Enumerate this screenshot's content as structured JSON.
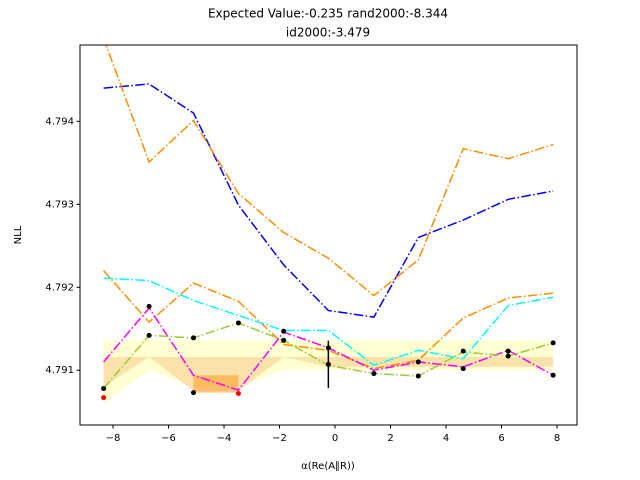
{
  "chart_data": {
    "type": "line",
    "title": [
      "Expected Value:-0.235       rand2000:-8.344",
      "id2000:-3.479"
    ],
    "x_label": "α(Re(A∥R))",
    "y_label": "NLL",
    "xlim": [
      -9.19,
      8.72
    ],
    "ylim": [
      4.79034,
      4.79492
    ],
    "xticks": [
      {
        "value": -8,
        "label": "−8"
      },
      {
        "value": -6,
        "label": "−6"
      },
      {
        "value": -4,
        "label": "−4"
      },
      {
        "value": -2,
        "label": "−2"
      },
      0,
      2,
      4,
      6,
      8
    ],
    "yticks": [
      4.791,
      4.792,
      4.793,
      4.794
    ],
    "x": [
      -8.34,
      -6.7,
      -5.1,
      -3.48,
      -1.85,
      -0.24,
      1.4,
      3.0,
      4.62,
      6.24,
      7.86
    ],
    "series": [
      {
        "color": "#0000ff",
        "values": [
          4.7944,
          4.79445,
          4.7941,
          4.79299,
          4.79227,
          4.79172,
          4.79164,
          4.7926,
          4.79281,
          4.79306,
          4.79316
        ]
      },
      {
        "color": "#ff8c00",
        "values": [
          4.795,
          4.79351,
          4.79401,
          4.79313,
          4.79266,
          4.79235,
          4.7919,
          4.79233,
          4.79367,
          4.79355,
          4.79372
        ]
      },
      {
        "color": "#ff8c00",
        "values": [
          4.7922,
          4.79158,
          4.79205,
          4.79183,
          4.79131,
          4.79124,
          4.79102,
          4.79112,
          4.79163,
          4.79187,
          4.79193
        ]
      },
      {
        "color": "#00ffff",
        "values": [
          4.79211,
          4.79208,
          4.79184,
          4.79166,
          4.79148,
          4.79148,
          4.79106,
          4.79124,
          4.79114,
          4.79178,
          4.79188
        ]
      },
      {
        "color": "#ff00ff",
        "values": [
          4.7911,
          4.79175,
          4.79094,
          4.79076,
          4.79146,
          4.79127,
          4.791,
          4.7911,
          4.79104,
          4.79124,
          4.79094
        ]
      },
      {
        "color": "#9acd32",
        "values": [
          4.79078,
          4.79142,
          4.79139,
          4.79157,
          4.79136,
          4.79106,
          4.79096,
          4.79093,
          4.79122,
          4.79117,
          4.79133
        ]
      }
    ],
    "bands": [
      {
        "color": "#ffff99",
        "x": [
          -8.34,
          -6.7,
          -5.1,
          -3.48,
          -1.85,
          -0.24,
          1.4,
          3.0,
          4.62,
          6.24,
          7.86
        ],
        "upper": [
          4.79136,
          4.79136,
          4.79136,
          4.79136,
          4.79136,
          4.79136,
          4.79136,
          4.79136,
          4.79136,
          4.79136,
          4.79136
        ],
        "lower": [
          4.7906,
          4.791,
          4.7908,
          4.7908,
          4.791,
          4.791,
          4.791,
          4.791,
          4.791,
          4.791,
          4.791
        ]
      },
      {
        "color": "#f5c27a",
        "x": [
          -8.34,
          -6.7,
          -5.1,
          -3.48,
          -1.85,
          -0.24,
          1.4,
          3.0,
          4.62,
          6.24,
          7.86
        ],
        "upper": [
          4.79116,
          4.79116,
          4.79116,
          4.79116,
          4.79116,
          4.79116,
          4.79116,
          4.79116,
          4.79116,
          4.79116,
          4.79116
        ],
        "lower": [
          4.7908,
          4.79116,
          4.79075,
          4.79075,
          4.79116,
          4.79104,
          4.79104,
          4.79104,
          4.79104,
          4.79104,
          4.79104
        ]
      },
      {
        "color": "#ff8c00",
        "x": [
          -5.1,
          -3.48
        ],
        "upper": [
          4.79094,
          4.79094
        ],
        "lower": [
          4.79073,
          4.79073
        ]
      }
    ],
    "points": [
      {
        "color": "#000000",
        "x": [
          -8.34,
          -6.7,
          -6.7,
          -5.1,
          -5.1,
          -3.48,
          -1.85,
          -1.85,
          -0.24,
          -0.24,
          1.4,
          3.0,
          3.0,
          4.62,
          4.62,
          6.24,
          6.24,
          7.86,
          7.86
        ],
        "y": [
          4.79078,
          4.79177,
          4.79142,
          4.79073,
          4.79139,
          4.79157,
          4.79147,
          4.79136,
          4.79127,
          4.79107,
          4.79096,
          4.7911,
          4.79093,
          4.79123,
          4.79102,
          4.79123,
          4.79117,
          4.79133,
          4.79094
        ]
      },
      {
        "color": "#ff0000",
        "x": [
          -8.34,
          -3.48
        ],
        "y": [
          4.79067,
          4.79072
        ]
      }
    ],
    "errorbar": {
      "color": "#000000",
      "x": -0.24,
      "y": 4.79107,
      "err": 0.000285
    }
  }
}
